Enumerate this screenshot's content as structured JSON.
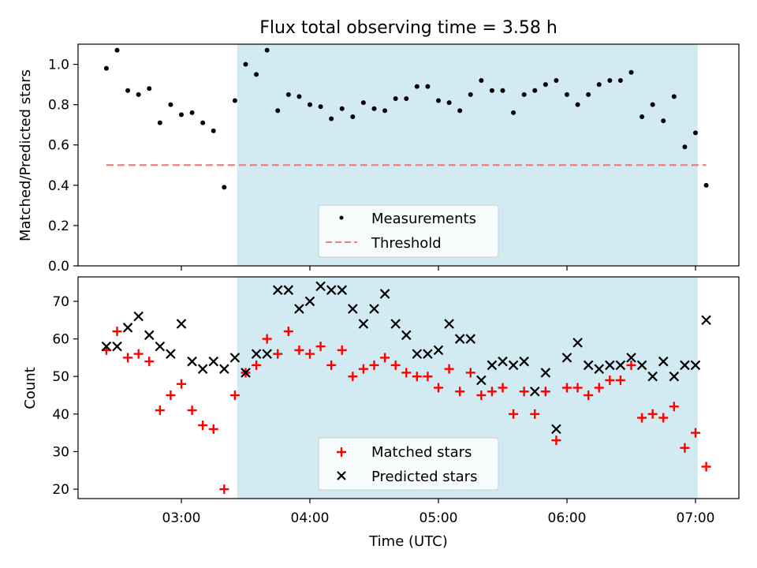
{
  "chart_data": {
    "title": "Flux total observing time = 3.58 h",
    "x_ticks": [
      "03:00",
      "04:00",
      "05:00",
      "06:00",
      "07:00"
    ],
    "xlabel": "Time (UTC)",
    "shaded_region": {
      "start": "03:26",
      "end": "07:01",
      "color": "#add8e6"
    },
    "panels": [
      {
        "type": "scatter",
        "ylabel": "Matched/Predicted stars",
        "ylim": [
          0,
          1.1
        ],
        "y_ticks": [
          "0.0",
          "0.2",
          "0.4",
          "0.6",
          "0.8",
          "1.0"
        ],
        "legend_placement": "lower-center",
        "series": [
          {
            "name": "Measurements",
            "color": "#000000",
            "marker": "dot",
            "points": [
              [
                "02:25",
                0.98
              ],
              [
                "02:30",
                1.07
              ],
              [
                "02:35",
                0.87
              ],
              [
                "02:40",
                0.85
              ],
              [
                "02:45",
                0.88
              ],
              [
                "02:50",
                0.71
              ],
              [
                "02:55",
                0.8
              ],
              [
                "03:00",
                0.75
              ],
              [
                "03:05",
                0.76
              ],
              [
                "03:10",
                0.71
              ],
              [
                "03:15",
                0.67
              ],
              [
                "03:20",
                0.39
              ],
              [
                "03:25",
                0.82
              ],
              [
                "03:30",
                1.0
              ],
              [
                "03:35",
                0.95
              ],
              [
                "03:40",
                1.07
              ],
              [
                "03:45",
                0.77
              ],
              [
                "03:50",
                0.85
              ],
              [
                "03:55",
                0.84
              ],
              [
                "04:00",
                0.8
              ],
              [
                "04:05",
                0.79
              ],
              [
                "04:10",
                0.73
              ],
              [
                "04:15",
                0.78
              ],
              [
                "04:20",
                0.74
              ],
              [
                "04:25",
                0.81
              ],
              [
                "04:30",
                0.78
              ],
              [
                "04:35",
                0.77
              ],
              [
                "04:40",
                0.83
              ],
              [
                "04:45",
                0.83
              ],
              [
                "04:50",
                0.89
              ],
              [
                "04:55",
                0.89
              ],
              [
                "05:00",
                0.82
              ],
              [
                "05:05",
                0.81
              ],
              [
                "05:10",
                0.77
              ],
              [
                "05:15",
                0.85
              ],
              [
                "05:20",
                0.92
              ],
              [
                "05:25",
                0.87
              ],
              [
                "05:30",
                0.87
              ],
              [
                "05:35",
                0.76
              ],
              [
                "05:40",
                0.85
              ],
              [
                "05:45",
                0.87
              ],
              [
                "05:50",
                0.9
              ],
              [
                "05:55",
                0.92
              ],
              [
                "06:00",
                0.85
              ],
              [
                "06:05",
                0.8
              ],
              [
                "06:10",
                0.85
              ],
              [
                "06:15",
                0.9
              ],
              [
                "06:20",
                0.92
              ],
              [
                "06:25",
                0.92
              ],
              [
                "06:30",
                0.96
              ],
              [
                "06:35",
                0.74
              ],
              [
                "06:40",
                0.8
              ],
              [
                "06:45",
                0.72
              ],
              [
                "06:50",
                0.84
              ],
              [
                "06:55",
                0.59
              ],
              [
                "07:00",
                0.66
              ],
              [
                "07:05",
                0.4
              ]
            ]
          },
          {
            "name": "Threshold",
            "color": "#f08080",
            "style": "dashed",
            "points": [
              [
                "02:25",
                0.5
              ],
              [
                "07:05",
                0.5
              ]
            ]
          }
        ]
      },
      {
        "type": "scatter",
        "ylabel": "Count",
        "ylim": [
          17.5,
          76.5
        ],
        "y_ticks": [
          "20",
          "30",
          "40",
          "50",
          "60",
          "70"
        ],
        "legend_placement": "lower-center",
        "series": [
          {
            "name": "Matched stars",
            "color": "#ff0000",
            "marker": "plus",
            "points": [
              [
                "02:25",
                57
              ],
              [
                "02:30",
                62
              ],
              [
                "02:35",
                55
              ],
              [
                "02:40",
                56
              ],
              [
                "02:45",
                54
              ],
              [
                "02:50",
                41
              ],
              [
                "02:55",
                45
              ],
              [
                "03:00",
                48
              ],
              [
                "03:05",
                41
              ],
              [
                "03:10",
                37
              ],
              [
                "03:15",
                36
              ],
              [
                "03:20",
                20
              ],
              [
                "03:25",
                45
              ],
              [
                "03:30",
                51
              ],
              [
                "03:35",
                53
              ],
              [
                "03:40",
                60
              ],
              [
                "03:45",
                56
              ],
              [
                "03:50",
                62
              ],
              [
                "03:55",
                57
              ],
              [
                "04:00",
                56
              ],
              [
                "04:05",
                58
              ],
              [
                "04:10",
                53
              ],
              [
                "04:15",
                57
              ],
              [
                "04:20",
                50
              ],
              [
                "04:25",
                52
              ],
              [
                "04:30",
                53
              ],
              [
                "04:35",
                55
              ],
              [
                "04:40",
                53
              ],
              [
                "04:45",
                51
              ],
              [
                "04:50",
                50
              ],
              [
                "04:55",
                50
              ],
              [
                "05:00",
                47
              ],
              [
                "05:05",
                52
              ],
              [
                "05:10",
                46
              ],
              [
                "05:15",
                51
              ],
              [
                "05:20",
                45
              ],
              [
                "05:25",
                46
              ],
              [
                "05:30",
                47
              ],
              [
                "05:35",
                40
              ],
              [
                "05:40",
                46
              ],
              [
                "05:45",
                40
              ],
              [
                "05:50",
                46
              ],
              [
                "05:55",
                33
              ],
              [
                "06:00",
                47
              ],
              [
                "06:05",
                47
              ],
              [
                "06:10",
                45
              ],
              [
                "06:15",
                47
              ],
              [
                "06:20",
                49
              ],
              [
                "06:25",
                49
              ],
              [
                "06:30",
                53
              ],
              [
                "06:35",
                39
              ],
              [
                "06:40",
                40
              ],
              [
                "06:45",
                39
              ],
              [
                "06:50",
                42
              ],
              [
                "06:55",
                31
              ],
              [
                "07:00",
                35
              ],
              [
                "07:05",
                26
              ]
            ]
          },
          {
            "name": "Predicted stars",
            "color": "#000000",
            "marker": "x",
            "points": [
              [
                "02:25",
                58
              ],
              [
                "02:30",
                58
              ],
              [
                "02:35",
                63
              ],
              [
                "02:40",
                66
              ],
              [
                "02:45",
                61
              ],
              [
                "02:50",
                58
              ],
              [
                "02:55",
                56
              ],
              [
                "03:00",
                64
              ],
              [
                "03:05",
                54
              ],
              [
                "03:10",
                52
              ],
              [
                "03:15",
                54
              ],
              [
                "03:20",
                52
              ],
              [
                "03:25",
                55
              ],
              [
                "03:30",
                51
              ],
              [
                "03:35",
                56
              ],
              [
                "03:40",
                56
              ],
              [
                "03:45",
                73
              ],
              [
                "03:50",
                73
              ],
              [
                "03:55",
                68
              ],
              [
                "04:00",
                70
              ],
              [
                "04:05",
                74
              ],
              [
                "04:10",
                73
              ],
              [
                "04:15",
                73
              ],
              [
                "04:20",
                68
              ],
              [
                "04:25",
                64
              ],
              [
                "04:30",
                68
              ],
              [
                "04:35",
                72
              ],
              [
                "04:40",
                64
              ],
              [
                "04:45",
                61
              ],
              [
                "04:50",
                56
              ],
              [
                "04:55",
                56
              ],
              [
                "05:00",
                57
              ],
              [
                "05:05",
                64
              ],
              [
                "05:10",
                60
              ],
              [
                "05:15",
                60
              ],
              [
                "05:20",
                49
              ],
              [
                "05:25",
                53
              ],
              [
                "05:30",
                54
              ],
              [
                "05:35",
                53
              ],
              [
                "05:40",
                54
              ],
              [
                "05:45",
                46
              ],
              [
                "05:50",
                51
              ],
              [
                "05:55",
                36
              ],
              [
                "06:00",
                55
              ],
              [
                "06:05",
                59
              ],
              [
                "06:10",
                53
              ],
              [
                "06:15",
                52
              ],
              [
                "06:20",
                53
              ],
              [
                "06:25",
                53
              ],
              [
                "06:30",
                55
              ],
              [
                "06:35",
                53
              ],
              [
                "06:40",
                50
              ],
              [
                "06:45",
                54
              ],
              [
                "06:50",
                50
              ],
              [
                "06:55",
                53
              ],
              [
                "07:00",
                53
              ],
              [
                "07:05",
                65
              ]
            ]
          }
        ]
      }
    ]
  }
}
